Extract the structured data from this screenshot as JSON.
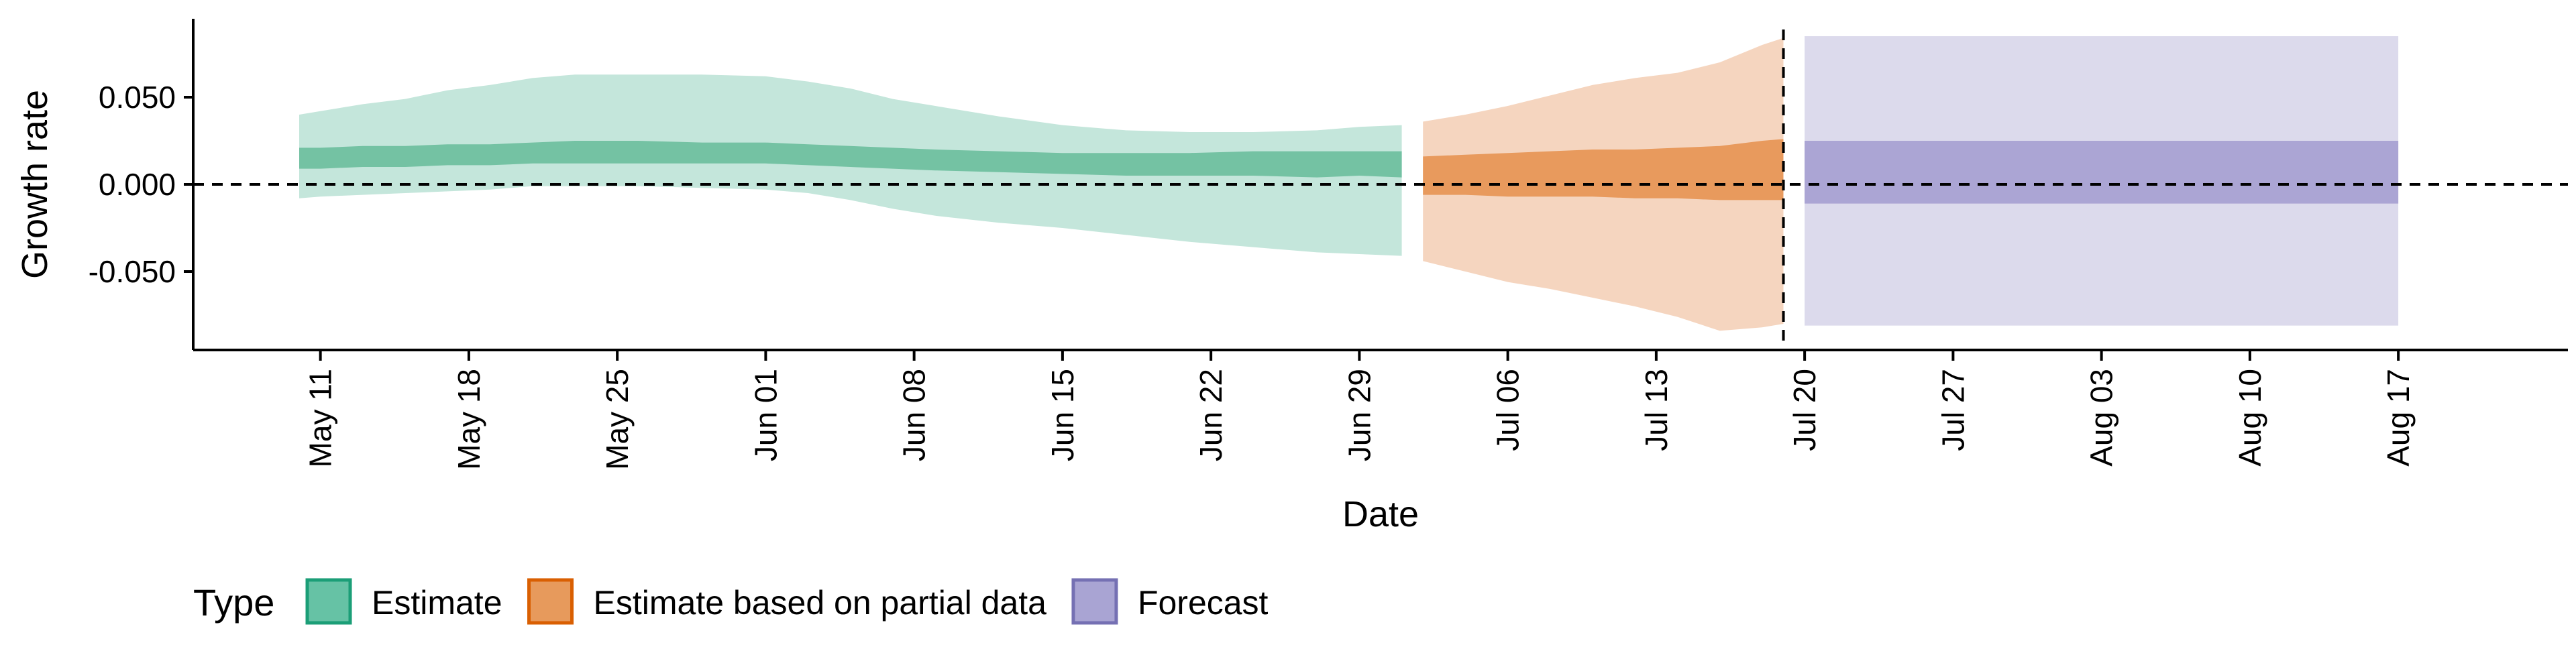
{
  "chart_data": {
    "type": "area",
    "xlabel": "Date",
    "ylabel": "Growth rate",
    "x_ticks": [
      "2020-05-11",
      "2020-05-18",
      "2020-05-25",
      "2020-06-01",
      "2020-06-08",
      "2020-06-15",
      "2020-06-22",
      "2020-06-29",
      "2020-07-06",
      "2020-07-13",
      "2020-07-20",
      "2020-07-27",
      "2020-08-03",
      "2020-08-10",
      "2020-08-17"
    ],
    "x_tick_labels": [
      "May 11",
      "May 18",
      "May 25",
      "Jun 01",
      "Jun 08",
      "Jun 15",
      "Jun 22",
      "Jun 29",
      "Jul 06",
      "Jul 13",
      "Jul 20",
      "Jul 27",
      "Aug 03",
      "Aug 10",
      "Aug 17"
    ],
    "y_ticks": [
      -0.05,
      0.0,
      0.05
    ],
    "y_tick_labels": [
      "-0.050",
      "0.000",
      "0.050"
    ],
    "xlim": [
      "2020-05-05",
      "2020-08-25"
    ],
    "ylim": [
      -0.095,
      0.095
    ],
    "grid": false,
    "reference_lines": [
      {
        "axis": "y",
        "value": 0.0,
        "style": "dashed"
      },
      {
        "axis": "x",
        "value": "2020-07-19",
        "style": "dashed"
      }
    ],
    "legend": {
      "title": "Type",
      "position": "bottom",
      "entries": [
        {
          "label": "Estimate",
          "fill": "#66c2a5",
          "stroke": "#1b9e77"
        },
        {
          "label": "Estimate based on partial data",
          "fill": "#e79a5c",
          "stroke": "#d95f02"
        },
        {
          "label": "Forecast",
          "fill": "#a9a4d3",
          "stroke": "#7570b3"
        }
      ]
    },
    "series": [
      {
        "type": "Estimate",
        "outer_color": "#c4e6db",
        "inner_color": "#74c2a3",
        "points": [
          {
            "x": "2020-05-10",
            "lo90": -0.008,
            "hi90": 0.04,
            "lo50": 0.009,
            "hi50": 0.021
          },
          {
            "x": "2020-05-11",
            "lo90": -0.007,
            "hi90": 0.042,
            "lo50": 0.009,
            "hi50": 0.021
          },
          {
            "x": "2020-05-13",
            "lo90": -0.006,
            "hi90": 0.046,
            "lo50": 0.01,
            "hi50": 0.022
          },
          {
            "x": "2020-05-15",
            "lo90": -0.005,
            "hi90": 0.049,
            "lo50": 0.01,
            "hi50": 0.022
          },
          {
            "x": "2020-05-17",
            "lo90": -0.004,
            "hi90": 0.054,
            "lo50": 0.011,
            "hi50": 0.023
          },
          {
            "x": "2020-05-19",
            "lo90": -0.003,
            "hi90": 0.057,
            "lo50": 0.011,
            "hi50": 0.023
          },
          {
            "x": "2020-05-21",
            "lo90": -0.001,
            "hi90": 0.061,
            "lo50": 0.012,
            "hi50": 0.024
          },
          {
            "x": "2020-05-23",
            "lo90": -0.001,
            "hi90": 0.063,
            "lo50": 0.012,
            "hi50": 0.025
          },
          {
            "x": "2020-05-26",
            "lo90": -0.001,
            "hi90": 0.063,
            "lo50": 0.012,
            "hi50": 0.025
          },
          {
            "x": "2020-05-29",
            "lo90": -0.002,
            "hi90": 0.063,
            "lo50": 0.012,
            "hi50": 0.024
          },
          {
            "x": "2020-06-01",
            "lo90": -0.003,
            "hi90": 0.062,
            "lo50": 0.012,
            "hi50": 0.024
          },
          {
            "x": "2020-06-03",
            "lo90": -0.005,
            "hi90": 0.059,
            "lo50": 0.011,
            "hi50": 0.023
          },
          {
            "x": "2020-06-05",
            "lo90": -0.009,
            "hi90": 0.055,
            "lo50": 0.01,
            "hi50": 0.022
          },
          {
            "x": "2020-06-07",
            "lo90": -0.014,
            "hi90": 0.049,
            "lo50": 0.009,
            "hi50": 0.021
          },
          {
            "x": "2020-06-09",
            "lo90": -0.018,
            "hi90": 0.045,
            "lo50": 0.008,
            "hi50": 0.02
          },
          {
            "x": "2020-06-12",
            "lo90": -0.022,
            "hi90": 0.039,
            "lo50": 0.007,
            "hi50": 0.019
          },
          {
            "x": "2020-06-15",
            "lo90": -0.025,
            "hi90": 0.034,
            "lo50": 0.006,
            "hi50": 0.018
          },
          {
            "x": "2020-06-18",
            "lo90": -0.029,
            "hi90": 0.031,
            "lo50": 0.005,
            "hi50": 0.018
          },
          {
            "x": "2020-06-21",
            "lo90": -0.033,
            "hi90": 0.03,
            "lo50": 0.005,
            "hi50": 0.018
          },
          {
            "x": "2020-06-24",
            "lo90": -0.036,
            "hi90": 0.03,
            "lo50": 0.005,
            "hi50": 0.019
          },
          {
            "x": "2020-06-27",
            "lo90": -0.039,
            "hi90": 0.031,
            "lo50": 0.004,
            "hi50": 0.019
          },
          {
            "x": "2020-06-29",
            "lo90": -0.04,
            "hi90": 0.033,
            "lo50": 0.005,
            "hi50": 0.019
          },
          {
            "x": "2020-07-01",
            "lo90": -0.041,
            "hi90": 0.034,
            "lo50": 0.004,
            "hi50": 0.019
          }
        ]
      },
      {
        "type": "Estimate based on partial data",
        "outer_color": "#f5d5bf",
        "inner_color": "#e89a5d",
        "points": [
          {
            "x": "2020-07-02",
            "lo90": -0.044,
            "hi90": 0.036,
            "lo50": -0.006,
            "hi50": 0.016
          },
          {
            "x": "2020-07-04",
            "lo90": -0.05,
            "hi90": 0.04,
            "lo50": -0.006,
            "hi50": 0.017
          },
          {
            "x": "2020-07-06",
            "lo90": -0.056,
            "hi90": 0.045,
            "lo50": -0.007,
            "hi50": 0.018
          },
          {
            "x": "2020-07-08",
            "lo90": -0.06,
            "hi90": 0.051,
            "lo50": -0.007,
            "hi50": 0.019
          },
          {
            "x": "2020-07-10",
            "lo90": -0.065,
            "hi90": 0.057,
            "lo50": -0.007,
            "hi50": 0.02
          },
          {
            "x": "2020-07-12",
            "lo90": -0.07,
            "hi90": 0.061,
            "lo50": -0.008,
            "hi50": 0.02
          },
          {
            "x": "2020-07-14",
            "lo90": -0.076,
            "hi90": 0.064,
            "lo50": -0.008,
            "hi50": 0.021
          },
          {
            "x": "2020-07-16",
            "lo90": -0.084,
            "hi90": 0.07,
            "lo50": -0.009,
            "hi50": 0.022
          },
          {
            "x": "2020-07-18",
            "lo90": -0.082,
            "hi90": 0.08,
            "lo50": -0.009,
            "hi50": 0.025
          },
          {
            "x": "2020-07-19",
            "lo90": -0.08,
            "hi90": 0.084,
            "lo50": -0.009,
            "hi50": 0.026
          }
        ]
      },
      {
        "type": "Forecast",
        "outer_color": "#dcdaec",
        "inner_color": "#aba5d4",
        "points": [
          {
            "x": "2020-07-20",
            "lo90": -0.081,
            "hi90": 0.085,
            "lo50": -0.011,
            "hi50": 0.025
          },
          {
            "x": "2020-08-17",
            "lo90": -0.081,
            "hi90": 0.085,
            "lo50": -0.011,
            "hi50": 0.025
          }
        ]
      }
    ]
  }
}
